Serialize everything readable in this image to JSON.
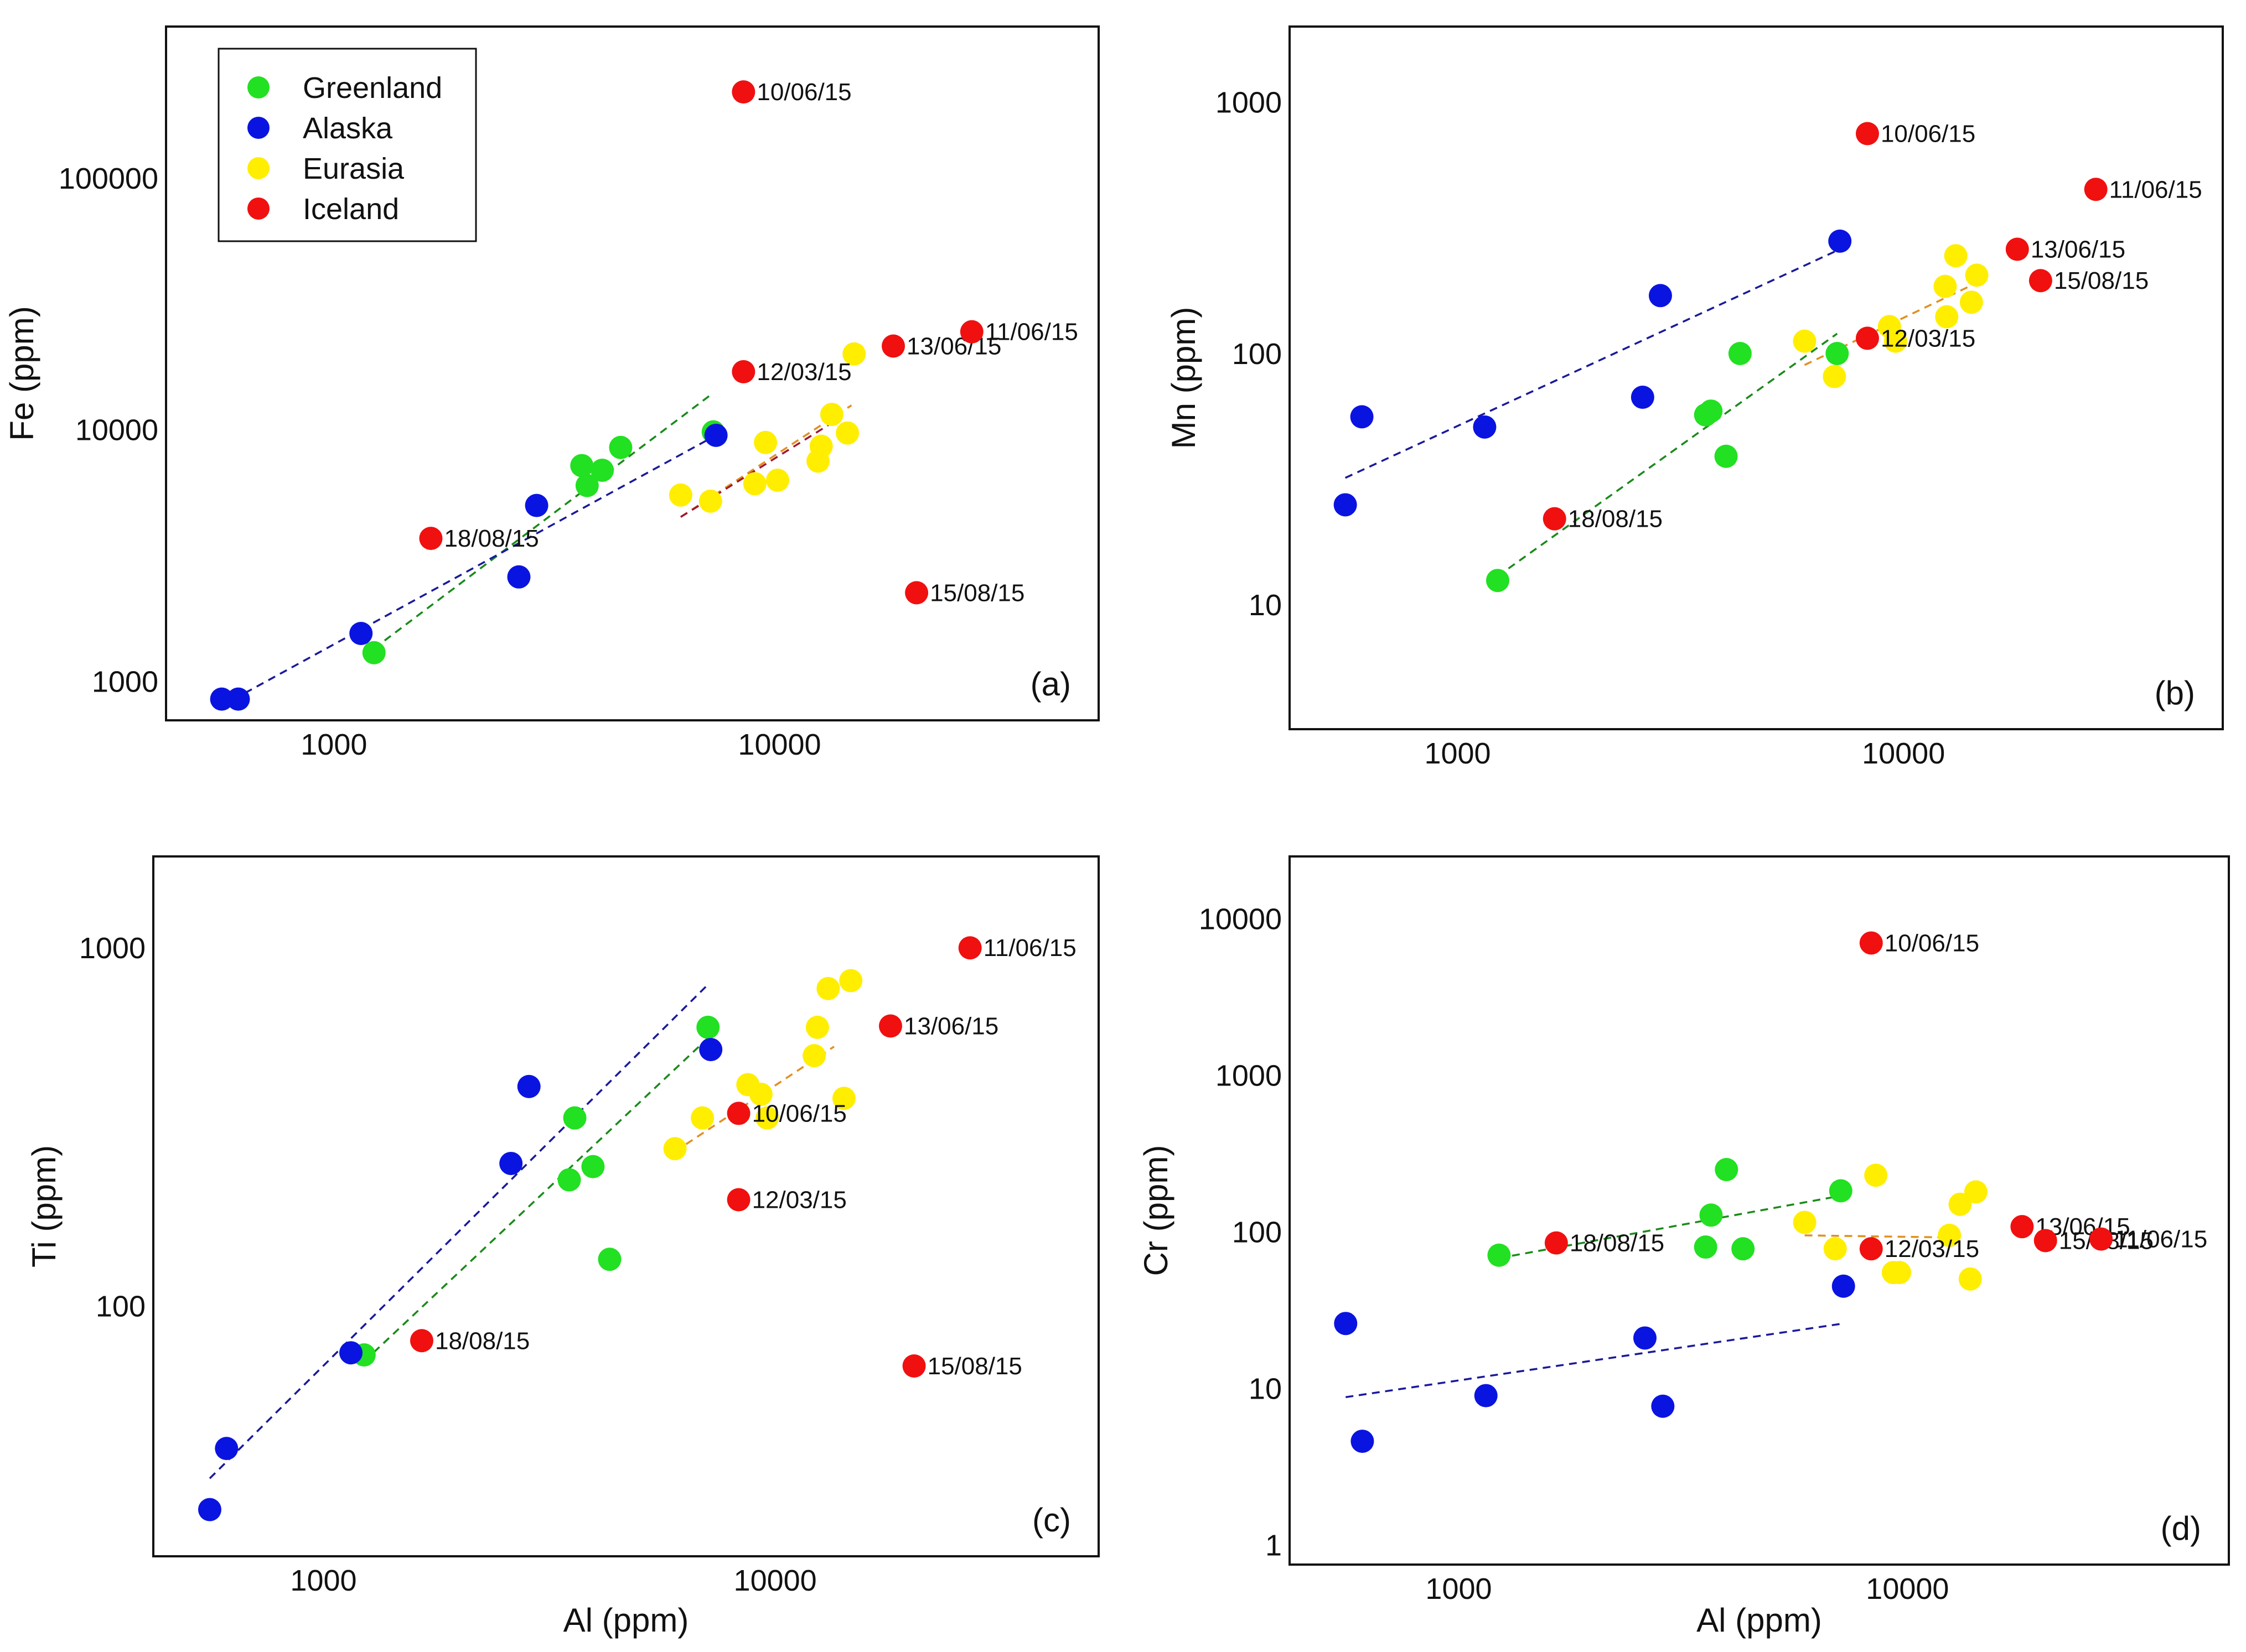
{
  "colors": {
    "Greenland": "#22e022",
    "Alaska": "#0a14e0",
    "Eurasia": "#ffee00",
    "Iceland": "#f01010",
    "trend_Greenland": "#1b8a1b",
    "trend_Alaska": "#1a1a9a",
    "trend_Eurasia": "#e09020",
    "trend_Iceland": "#a01830"
  },
  "legend": [
    "Greenland",
    "Alaska",
    "Eurasia",
    "Iceland"
  ],
  "chart_data": [
    {
      "type": "scatter",
      "tag": "(a)",
      "xlabel": "",
      "ylabel": "Fe (ppm)",
      "xscale": "log",
      "yscale": "log",
      "xlim": [
        420,
        52000
      ],
      "ylim": [
        700,
        400000
      ],
      "xticks": [
        1000,
        10000
      ],
      "xtick_labels": [
        "1000",
        "10000"
      ],
      "yticks": [
        1000,
        10000,
        100000
      ],
      "ytick_labels": [
        "1000",
        "10000",
        "100000"
      ],
      "legend": true,
      "series": [
        {
          "name": "Greenland",
          "points": [
            [
              1230,
              1300
            ],
            [
              3600,
              7200
            ],
            [
              3700,
              6000
            ],
            [
              4000,
              6900
            ],
            [
              4400,
              8500
            ],
            [
              7100,
              9800
            ]
          ]
        },
        {
          "name": "Alaska",
          "points": [
            [
              560,
              850
            ],
            [
              610,
              850
            ],
            [
              1150,
              1550
            ],
            [
              2600,
              2600
            ],
            [
              2850,
              5000
            ],
            [
              7200,
              9500
            ]
          ]
        },
        {
          "name": "Eurasia",
          "points": [
            [
              6000,
              5500
            ],
            [
              7000,
              5200
            ],
            [
              8800,
              6100
            ],
            [
              9300,
              8900
            ],
            [
              9900,
              6300
            ],
            [
              12200,
              7500
            ],
            [
              12400,
              8600
            ],
            [
              13100,
              11500
            ],
            [
              14200,
              9700
            ],
            [
              14700,
              20000
            ]
          ]
        },
        {
          "name": "Iceland",
          "points": [
            [
              1650,
              3700
            ],
            [
              8300,
              17000
            ],
            [
              8300,
              220000
            ],
            [
              18000,
              21500
            ],
            [
              20300,
              2250
            ],
            [
              27000,
              24500
            ]
          ],
          "labels": [
            "18/08/15",
            "12/03/15",
            "10/06/15",
            "13/06/15",
            "15/08/15",
            "11/06/15"
          ]
        }
      ],
      "trendlines": [
        {
          "series": "Greenland",
          "from": [
            1230,
            1350
          ],
          "to": [
            7100,
            14000
          ]
        },
        {
          "series": "Alaska",
          "from": [
            560,
            800
          ],
          "to": [
            7200,
            9500
          ]
        },
        {
          "series": "Eurasia",
          "from": [
            6000,
            4500
          ],
          "to": [
            14500,
            12500
          ]
        },
        {
          "series": "Iceland",
          "from": [
            6000,
            4500
          ],
          "to": [
            13500,
            11000
          ]
        }
      ]
    },
    {
      "type": "scatter",
      "tag": "(b)",
      "xlabel": "",
      "ylabel": "Mn (ppm)",
      "xscale": "log",
      "yscale": "log",
      "xlim": [
        420,
        52000
      ],
      "ylim": [
        3.2,
        2000
      ],
      "xticks": [
        1000,
        10000
      ],
      "xtick_labels": [
        "1000",
        "10000"
      ],
      "yticks": [
        10,
        100,
        1000
      ],
      "ytick_labels": [
        "10",
        "100",
        "1000"
      ],
      "legend": false,
      "series": [
        {
          "name": "Greenland",
          "points": [
            [
              1230,
              12.5
            ],
            [
              3600,
              57
            ],
            [
              3700,
              59
            ],
            [
              4000,
              39
            ],
            [
              4300,
              100
            ],
            [
              7100,
              100
            ]
          ]
        },
        {
          "name": "Alaska",
          "points": [
            [
              560,
              25
            ],
            [
              610,
              56
            ],
            [
              1150,
              51
            ],
            [
              2600,
              67
            ],
            [
              2850,
              170
            ],
            [
              7200,
              280
            ]
          ]
        },
        {
          "name": "Eurasia",
          "points": [
            [
              6000,
              112
            ],
            [
              7000,
              81
            ],
            [
              9300,
              128
            ],
            [
              9600,
              112
            ],
            [
              12500,
              140
            ],
            [
              12400,
              185
            ],
            [
              13100,
              245
            ],
            [
              14200,
              160
            ],
            [
              14600,
              205
            ]
          ]
        },
        {
          "name": "Iceland",
          "points": [
            [
              1650,
              22
            ],
            [
              8300,
              115
            ],
            [
              8300,
              750
            ],
            [
              18000,
              260
            ],
            [
              20300,
              195
            ],
            [
              27000,
              450
            ]
          ],
          "labels": [
            "18/08/15",
            "12/03/15",
            "10/06/15",
            "13/06/15",
            "15/08/15",
            "11/06/15"
          ]
        }
      ],
      "trendlines": [
        {
          "series": "Greenland",
          "from": [
            1230,
            13
          ],
          "to": [
            7100,
            120
          ]
        },
        {
          "series": "Alaska",
          "from": [
            560,
            32
          ],
          "to": [
            7200,
            260
          ]
        },
        {
          "series": "Eurasia",
          "from": [
            6000,
            90
          ],
          "to": [
            14500,
            190
          ]
        }
      ]
    },
    {
      "type": "scatter",
      "tag": "(c)",
      "xlabel": "Al (ppm)",
      "ylabel": "Ti (ppm)",
      "xscale": "log",
      "yscale": "log",
      "xlim": [
        420,
        52000
      ],
      "ylim": [
        20,
        1800
      ],
      "xticks": [
        1000,
        10000
      ],
      "xtick_labels": [
        "1000",
        "10000"
      ],
      "yticks": [
        100,
        1000
      ],
      "ytick_labels": [
        "100",
        "1000"
      ],
      "legend": false,
      "series": [
        {
          "name": "Greenland",
          "points": [
            [
              1230,
              73
            ],
            [
              3500,
              225
            ],
            [
              3600,
              335
            ],
            [
              3950,
              245
            ],
            [
              4300,
              135
            ],
            [
              7100,
              600
            ]
          ]
        },
        {
          "name": "Alaska",
          "points": [
            [
              560,
              27
            ],
            [
              610,
              40
            ],
            [
              1150,
              74
            ],
            [
              2600,
              250
            ],
            [
              2850,
              410
            ],
            [
              7200,
              520
            ]
          ]
        },
        {
          "name": "Eurasia",
          "points": [
            [
              6000,
              275
            ],
            [
              6900,
              335
            ],
            [
              8700,
              415
            ],
            [
              9300,
              390
            ],
            [
              9600,
              335
            ],
            [
              12200,
              500
            ],
            [
              12400,
              600
            ],
            [
              13100,
              770
            ],
            [
              14200,
              380
            ],
            [
              14700,
              810
            ]
          ]
        },
        {
          "name": "Iceland",
          "points": [
            [
              1650,
              80
            ],
            [
              8300,
              198
            ],
            [
              8300,
              345
            ],
            [
              18000,
              605
            ],
            [
              20300,
              68
            ],
            [
              27000,
              1000
            ]
          ],
          "labels": [
            "18/08/15",
            "12/03/15",
            "10/06/15",
            "13/06/15",
            "15/08/15",
            "11/06/15"
          ]
        }
      ],
      "trendlines": [
        {
          "series": "Greenland",
          "from": [
            1230,
            70
          ],
          "to": [
            7100,
            560
          ]
        },
        {
          "series": "Alaska",
          "from": [
            560,
            33
          ],
          "to": [
            7100,
            790
          ]
        },
        {
          "series": "Eurasia",
          "from": [
            6000,
            270
          ],
          "to": [
            13500,
            530
          ]
        }
      ]
    },
    {
      "type": "scatter",
      "tag": "(d)",
      "xlabel": "Al (ppm)",
      "ylabel": "Cr (ppm)",
      "xscale": "log",
      "yscale": "log",
      "xlim": [
        420,
        52000
      ],
      "ylim": [
        0.75,
        25000
      ],
      "xticks": [
        1000,
        10000
      ],
      "xtick_labels": [
        "1000",
        "10000"
      ],
      "yticks": [
        1,
        10,
        100,
        1000,
        10000
      ],
      "ytick_labels": [
        "1",
        "10",
        "100",
        "1000",
        "10000"
      ],
      "legend": false,
      "series": [
        {
          "name": "Greenland",
          "points": [
            [
              1230,
              71
            ],
            [
              3550,
              80
            ],
            [
              3650,
              128
            ],
            [
              3950,
              250
            ],
            [
              4300,
              78
            ],
            [
              7100,
              183
            ]
          ]
        },
        {
          "name": "Alaska",
          "points": [
            [
              560,
              26
            ],
            [
              610,
              4.6
            ],
            [
              1150,
              9
            ],
            [
              2600,
              21
            ],
            [
              2850,
              7.7
            ],
            [
              7200,
              45
            ]
          ]
        },
        {
          "name": "Eurasia",
          "points": [
            [
              5900,
              115
            ],
            [
              6900,
              78
            ],
            [
              8500,
              230
            ],
            [
              9300,
              55
            ],
            [
              9600,
              55
            ],
            [
              12400,
              95
            ],
            [
              13100,
              150
            ],
            [
              13800,
              50
            ],
            [
              14200,
              180
            ]
          ]
        },
        {
          "name": "Iceland",
          "points": [
            [
              1650,
              85
            ],
            [
              8300,
              78
            ],
            [
              8300,
              7000
            ],
            [
              18000,
              108
            ],
            [
              20300,
              88
            ],
            [
              27000,
              90
            ]
          ],
          "labels": [
            "18/08/15",
            "12/03/15",
            "10/06/15",
            "13/06/15",
            "15/08/15",
            "11/06/15"
          ]
        }
      ],
      "trendlines": [
        {
          "series": "Greenland",
          "from": [
            1230,
            68
          ],
          "to": [
            7100,
            170
          ]
        },
        {
          "series": "Alaska",
          "from": [
            560,
            8.8
          ],
          "to": [
            7200,
            26
          ]
        },
        {
          "series": "Eurasia",
          "from": [
            5900,
            95
          ],
          "to": [
            13000,
            92
          ]
        }
      ]
    }
  ]
}
